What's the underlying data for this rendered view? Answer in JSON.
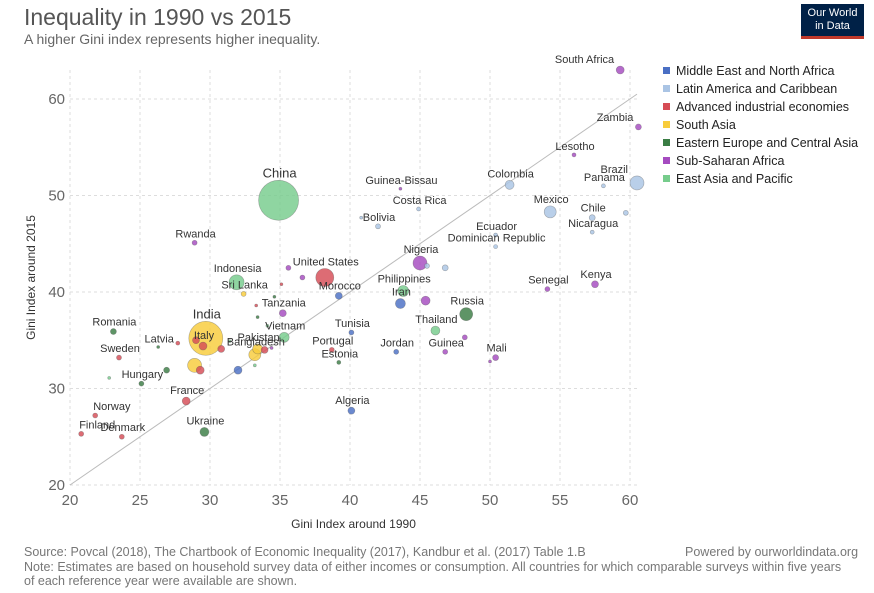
{
  "header": {
    "title": "Inequality in 1990 vs 2015",
    "subtitle": "A higher Gini index represents higher inequality.",
    "logo_line1": "Our World",
    "logo_line2": "in Data"
  },
  "footer": {
    "source": "Source: Povcal (2018), The Chartbook of Economic Inequality (2017), Kandbur et al. (2017) Table 1.B",
    "powered_by": "Powered by ourworldindata.org",
    "note": "Note: Estimates are based on household survey data of either incomes or consumption. All countries for which comparable surveys within five years of each reference year were available are shown."
  },
  "legend": [
    {
      "name": "Middle East and North Africa",
      "color": "#4a6fc4"
    },
    {
      "name": "Latin America and Caribbean",
      "color": "#aac4e4"
    },
    {
      "name": "Advanced industrial economies",
      "color": "#d64c55"
    },
    {
      "name": "South Asia",
      "color": "#f8cc3b"
    },
    {
      "name": "Eastern Europe and Central Asia",
      "color": "#3a7d44"
    },
    {
      "name": "Sub-Saharan Africa",
      "color": "#a54bc0"
    },
    {
      "name": "East Asia and Pacific",
      "color": "#76cc8c"
    }
  ],
  "chart_data": {
    "type": "scatter",
    "xlabel": "Gini Index around 1990",
    "ylabel": "Gini Index around 2015",
    "xlim": [
      20,
      60.5
    ],
    "ylim": [
      20,
      63
    ],
    "xticks": [
      "20",
      "25",
      "30",
      "35",
      "40",
      "45",
      "50",
      "55",
      "60"
    ],
    "yticks": [
      "20",
      "30",
      "40",
      "50",
      "60"
    ],
    "grid": true,
    "diagonal_reference_line": true,
    "legend_position": "right",
    "points": [
      {
        "label": "South Africa",
        "x": 59.3,
        "y": 63.0,
        "region": "Sub-Saharan Africa",
        "size": 4
      },
      {
        "label": "Zambia",
        "x": 60.6,
        "y": 57.1,
        "region": "Sub-Saharan Africa",
        "size": 3
      },
      {
        "label": "Lesotho",
        "x": 56.0,
        "y": 54.2,
        "region": "Sub-Saharan Africa",
        "size": 2
      },
      {
        "label": "Brazil",
        "x": 60.5,
        "y": 51.3,
        "region": "Latin America and Caribbean",
        "size": 7
      },
      {
        "label": "Panama",
        "x": 58.1,
        "y": 51.0,
        "region": "Latin America and Caribbean",
        "size": 2
      },
      {
        "label": "Colombia",
        "x": 51.4,
        "y": 51.1,
        "region": "Latin America and Caribbean",
        "size": 4.5
      },
      {
        "label": "Mexico",
        "x": 54.3,
        "y": 48.3,
        "region": "Latin America and Caribbean",
        "size": 6
      },
      {
        "label": "Chile",
        "x": 57.3,
        "y": 47.7,
        "region": "Latin America and Caribbean",
        "size": 3
      },
      {
        "label": "Nicaragua",
        "x": 57.3,
        "y": 46.2,
        "region": "Latin America and Caribbean",
        "size": 2
      },
      {
        "label": "Ecuador",
        "x": 50.4,
        "y": 45.9,
        "region": "Latin America and Caribbean",
        "size": 2
      },
      {
        "label": "Dominican Republic",
        "x": 50.4,
        "y": 44.7,
        "region": "Latin America and Caribbean",
        "size": 2
      },
      {
        "label": "Guinea-Bissau",
        "x": 43.6,
        "y": 50.7,
        "region": "Sub-Saharan Africa",
        "size": 1.5
      },
      {
        "label": "Costa Rica",
        "x": 44.9,
        "y": 48.6,
        "region": "Latin America and Caribbean",
        "size": 2
      },
      {
        "label": "Bolivia",
        "x": 42.0,
        "y": 46.8,
        "region": "Latin America and Caribbean",
        "size": 2.5
      },
      {
        "label": "China",
        "x": 34.9,
        "y": 49.5,
        "region": "East Asia and Pacific",
        "size": 20
      },
      {
        "label": "Rwanda",
        "x": 28.9,
        "y": 45.1,
        "region": "Sub-Saharan Africa",
        "size": 2.5
      },
      {
        "label": "Nigeria",
        "x": 45.0,
        "y": 43.0,
        "region": "Sub-Saharan Africa",
        "size": 7
      },
      {
        "label": "United States",
        "x": 38.2,
        "y": 41.5,
        "region": "Advanced industrial economies",
        "size": 9
      },
      {
        "label": "Indonesia",
        "x": 31.9,
        "y": 41.0,
        "region": "East Asia and Pacific",
        "size": 7.5
      },
      {
        "label": "Sri Lanka",
        "x": 32.4,
        "y": 39.8,
        "region": "South Asia",
        "size": 2.5
      },
      {
        "label": "Morocco",
        "x": 39.2,
        "y": 39.6,
        "region": "Middle East and North Africa",
        "size": 3.5
      },
      {
        "label": "Philippines",
        "x": 43.8,
        "y": 40.1,
        "region": "East Asia and Pacific",
        "size": 5.5
      },
      {
        "label": "Iran",
        "x": 43.6,
        "y": 38.8,
        "region": "Middle East and North Africa",
        "size": 5
      },
      {
        "label": "Senegal",
        "x": 54.1,
        "y": 40.3,
        "region": "Sub-Saharan Africa",
        "size": 2.5
      },
      {
        "label": "Kenya",
        "x": 57.5,
        "y": 40.8,
        "region": "Sub-Saharan Africa",
        "size": 3.5
      },
      {
        "label": "Russia",
        "x": 48.3,
        "y": 37.7,
        "region": "Eastern Europe and Central Asia",
        "size": 6.5
      },
      {
        "label": "Tanzania",
        "x": 35.2,
        "y": 37.8,
        "region": "Sub-Saharan Africa",
        "size": 3.5
      },
      {
        "label": "Thailand",
        "x": 46.1,
        "y": 36.0,
        "region": "East Asia and Pacific",
        "size": 4.5
      },
      {
        "label": "Tunisia",
        "x": 40.1,
        "y": 35.8,
        "region": "Middle East and North Africa",
        "size": 2.5
      },
      {
        "label": "Romania",
        "x": 23.1,
        "y": 35.9,
        "region": "Eastern Europe and Central Asia",
        "size": 3
      },
      {
        "label": "India",
        "x": 29.7,
        "y": 35.2,
        "region": "South Asia",
        "size": 17
      },
      {
        "label": "Italy",
        "x": 29.5,
        "y": 34.4,
        "region": "Advanced industrial economies",
        "size": 4
      },
      {
        "label": "Latvia",
        "x": 26.3,
        "y": 34.3,
        "region": "Eastern Europe and Central Asia",
        "size": 1.5
      },
      {
        "label": "Vietnam",
        "x": 35.3,
        "y": 35.3,
        "region": "East Asia and Pacific",
        "size": 5
      },
      {
        "label": "Pakistan",
        "x": 33.4,
        "y": 34.1,
        "region": "South Asia",
        "size": 5
      },
      {
        "label": "Bangladesh",
        "x": 33.2,
        "y": 33.5,
        "region": "South Asia",
        "size": 6
      },
      {
        "label": "Portugal",
        "x": 38.7,
        "y": 34.0,
        "region": "Advanced industrial economies",
        "size": 2.5
      },
      {
        "label": "Estonia",
        "x": 39.2,
        "y": 32.7,
        "region": "Eastern Europe and Central Asia",
        "size": 2
      },
      {
        "label": "Jordan",
        "x": 43.3,
        "y": 33.8,
        "region": "Middle East and North Africa",
        "size": 2.5
      },
      {
        "label": "Guinea",
        "x": 46.8,
        "y": 33.8,
        "region": "Sub-Saharan Africa",
        "size": 2.5
      },
      {
        "label": "Mali",
        "x": 50.4,
        "y": 33.2,
        "region": "Sub-Saharan Africa",
        "size": 3
      },
      {
        "label": "Sweden",
        "x": 23.5,
        "y": 33.2,
        "region": "Advanced industrial economies",
        "size": 2.5
      },
      {
        "label": "Hungary",
        "x": 25.1,
        "y": 30.5,
        "region": "Eastern Europe and Central Asia",
        "size": 2.5
      },
      {
        "label": "France",
        "x": 28.3,
        "y": 28.7,
        "region": "Advanced industrial economies",
        "size": 4
      },
      {
        "label": "Norway",
        "x": 21.8,
        "y": 27.2,
        "region": "Advanced industrial economies",
        "size": 2.5
      },
      {
        "label": "Algeria",
        "x": 40.1,
        "y": 27.7,
        "region": "Middle East and North Africa",
        "size": 3.5
      },
      {
        "label": "Finland",
        "x": 20.8,
        "y": 25.3,
        "region": "Advanced industrial economies",
        "size": 2.5
      },
      {
        "label": "Denmark",
        "x": 23.7,
        "y": 25.0,
        "region": "Advanced industrial economies",
        "size": 2.5
      },
      {
        "label": "Ukraine",
        "x": 29.6,
        "y": 25.5,
        "region": "Eastern Europe and Central Asia",
        "size": 4.5
      },
      {
        "label": "",
        "x": 28.9,
        "y": 32.4,
        "region": "South Asia",
        "size": 7
      },
      {
        "label": "",
        "x": 29.3,
        "y": 31.9,
        "region": "Advanced industrial economies",
        "size": 4
      },
      {
        "label": "",
        "x": 32.0,
        "y": 31.9,
        "region": "Middle East and North Africa",
        "size": 4
      },
      {
        "label": "",
        "x": 34.4,
        "y": 34.2,
        "region": "Sub-Saharan Africa",
        "size": 1.5
      },
      {
        "label": "",
        "x": 33.9,
        "y": 34.0,
        "region": "Advanced industrial economies",
        "size": 3.5
      },
      {
        "label": "",
        "x": 30.8,
        "y": 34.1,
        "region": "Advanced industrial economies",
        "size": 3.5
      },
      {
        "label": "",
        "x": 29.0,
        "y": 35.0,
        "region": "Advanced industrial economies",
        "size": 3.5
      },
      {
        "label": "",
        "x": 27.7,
        "y": 34.7,
        "region": "Advanced industrial economies",
        "size": 2
      },
      {
        "label": "",
        "x": 26.9,
        "y": 31.9,
        "region": "Eastern Europe and Central Asia",
        "size": 3
      },
      {
        "label": "",
        "x": 22.8,
        "y": 31.1,
        "region": "East Asia and Pacific",
        "size": 1.5
      },
      {
        "label": "",
        "x": 31.4,
        "y": 34.9,
        "region": "East Asia and Pacific",
        "size": 1.5
      },
      {
        "label": "",
        "x": 33.2,
        "y": 32.4,
        "region": "East Asia and Pacific",
        "size": 1.5
      },
      {
        "label": "",
        "x": 34.1,
        "y": 36.5,
        "region": "East Asia and Pacific",
        "size": 1.5
      },
      {
        "label": "",
        "x": 33.4,
        "y": 37.4,
        "region": "Eastern Europe and Central Asia",
        "size": 1.5
      },
      {
        "label": "",
        "x": 33.3,
        "y": 38.6,
        "region": "Advanced industrial economies",
        "size": 1.5
      },
      {
        "label": "",
        "x": 34.6,
        "y": 39.5,
        "region": "Eastern Europe and Central Asia",
        "size": 1.5
      },
      {
        "label": "",
        "x": 35.1,
        "y": 40.8,
        "region": "Advanced industrial economies",
        "size": 1.5
      },
      {
        "label": "",
        "x": 36.6,
        "y": 41.5,
        "region": "Sub-Saharan Africa",
        "size": 2.5
      },
      {
        "label": "",
        "x": 35.6,
        "y": 42.5,
        "region": "Sub-Saharan Africa",
        "size": 2.5
      },
      {
        "label": "",
        "x": 40.8,
        "y": 47.7,
        "region": "Latin America and Caribbean",
        "size": 1.5
      },
      {
        "label": "",
        "x": 46.8,
        "y": 42.5,
        "region": "Latin America and Caribbean",
        "size": 3
      },
      {
        "label": "",
        "x": 45.5,
        "y": 42.7,
        "region": "Latin America and Caribbean",
        "size": 2.5
      },
      {
        "label": "",
        "x": 45.4,
        "y": 39.1,
        "region": "Sub-Saharan Africa",
        "size": 4.5
      },
      {
        "label": "",
        "x": 48.2,
        "y": 35.3,
        "region": "Sub-Saharan Africa",
        "size": 2.5
      },
      {
        "label": "",
        "x": 50.0,
        "y": 32.8,
        "region": "Sub-Saharan Africa",
        "size": 1.5
      },
      {
        "label": "",
        "x": 59.7,
        "y": 48.2,
        "region": "Latin America and Caribbean",
        "size": 2.5
      }
    ]
  }
}
